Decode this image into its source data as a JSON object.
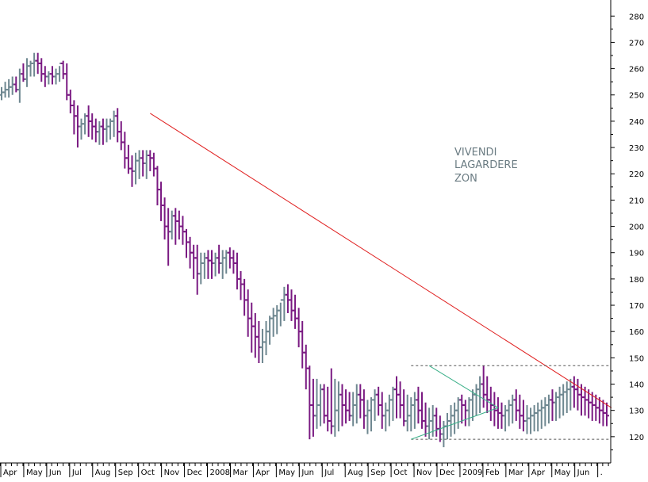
{
  "chart_data": {
    "type": "ohlc",
    "ylim": [
      110,
      284
    ],
    "y_ticks": [
      120,
      130,
      140,
      150,
      160,
      170,
      180,
      190,
      200,
      210,
      220,
      230,
      240,
      250,
      260,
      270,
      280
    ],
    "grid": false,
    "x_ticks": [
      "Apr",
      "May",
      "Jun",
      "Jul",
      "Aug",
      "Sep",
      "Oct",
      "Nov",
      "Dec",
      "2008",
      "Mar",
      "Apr",
      "May",
      "Jun",
      "Jul",
      "Aug",
      "Sep",
      "Oct",
      "Nov",
      "Dec",
      "2009",
      "Feb",
      "Mar",
      "Apr",
      "May",
      "Jun",
      "."
    ],
    "annotation_lines": [
      "VIVENDI",
      "LAGARDERE",
      "ZON"
    ],
    "colors": {
      "up": "#6e8790",
      "down": "#7a1a82",
      "trendline": "#e02020",
      "triangle": "#3bb089",
      "box": "#555555",
      "annotation": "#6a7b82"
    },
    "series": [
      {
        "bar_index": [
          0,
          1,
          2,
          3,
          4,
          5,
          6,
          7,
          8,
          9,
          10,
          11,
          12,
          13,
          14,
          15,
          16,
          17,
          18,
          19,
          20,
          21,
          22,
          23,
          24,
          25,
          26,
          27,
          28,
          29,
          30,
          31,
          32,
          33,
          34,
          35,
          36,
          37,
          38,
          39,
          40,
          41,
          42,
          43,
          44,
          45,
          46,
          47,
          48,
          49,
          50,
          51,
          52,
          53,
          54,
          55,
          56,
          57,
          58,
          59,
          60,
          61,
          62,
          63,
          64,
          65,
          66,
          67,
          68,
          69,
          70,
          71,
          72,
          73,
          74,
          75,
          76,
          77,
          78,
          79,
          80,
          81,
          82,
          83,
          84,
          85,
          86,
          87,
          88,
          89,
          90,
          91,
          92,
          93,
          94,
          95,
          96,
          97,
          98,
          99,
          100,
          101,
          102,
          103,
          104,
          105,
          106,
          107,
          108,
          109,
          110,
          111,
          112,
          113,
          114,
          115,
          116,
          117,
          118,
          119,
          120,
          121,
          122,
          123,
          124,
          125,
          126,
          127,
          128,
          129,
          130,
          131,
          132,
          133,
          134,
          135,
          136,
          137,
          138,
          139,
          140,
          141,
          142,
          143,
          144,
          145,
          146,
          147,
          148,
          149,
          150,
          151,
          152,
          153,
          154,
          155,
          156,
          157,
          158,
          159,
          160,
          161,
          162,
          163,
          164,
          165,
          166,
          167
        ],
        "open": [
          250,
          251,
          252,
          253,
          254,
          252,
          258,
          256,
          261,
          262,
          263,
          262,
          258,
          257,
          258,
          257,
          258,
          262,
          258,
          250,
          246,
          242,
          238,
          239,
          242,
          240,
          238,
          236,
          238,
          237,
          238,
          240,
          242,
          236,
          232,
          226,
          222,
          221,
          225,
          226,
          224,
          227,
          226,
          222,
          214,
          208,
          200,
          198,
          204,
          202,
          200,
          198,
          194,
          190,
          188,
          182,
          186,
          188,
          187,
          186,
          188,
          186,
          188,
          190,
          188,
          186,
          180,
          178,
          172,
          165,
          162,
          158,
          154,
          156,
          160,
          165,
          166,
          168,
          172,
          174,
          172,
          168,
          165,
          160,
          152,
          146,
          132,
          128,
          132,
          138,
          128,
          126,
          124,
          130,
          136,
          132,
          130,
          128,
          132,
          136,
          134,
          128,
          130,
          134,
          136,
          132,
          128,
          130,
          134,
          138,
          136,
          132,
          126,
          128,
          132,
          134,
          130,
          126,
          124,
          126,
          128,
          123,
          121,
          124,
          126,
          128,
          130,
          134,
          132,
          130,
          134,
          136,
          138,
          140,
          136,
          134,
          132,
          130,
          129,
          128,
          130,
          132,
          134,
          130,
          128,
          126,
          127,
          128,
          129,
          130,
          131,
          132,
          134,
          133,
          135,
          136,
          137,
          138,
          139,
          138,
          136,
          135,
          134,
          133,
          132,
          131,
          130,
          129
        ],
        "high": [
          253,
          255,
          256,
          257,
          257,
          260,
          262,
          264,
          263,
          266,
          266,
          264,
          261,
          259,
          261,
          260,
          261,
          263,
          262,
          252,
          248,
          246,
          241,
          243,
          246,
          243,
          241,
          240,
          241,
          241,
          241,
          244,
          245,
          240,
          236,
          231,
          227,
          228,
          229,
          229,
          229,
          229,
          228,
          223,
          217,
          211,
          207,
          206,
          207,
          206,
          204,
          199,
          196,
          193,
          193,
          190,
          190,
          191,
          191,
          190,
          193,
          191,
          191,
          192,
          191,
          190,
          183,
          180,
          176,
          171,
          167,
          164,
          161,
          164,
          166,
          169,
          170,
          171,
          177,
          178,
          176,
          174,
          169,
          164,
          155,
          147,
          142,
          142,
          140,
          140,
          139,
          146,
          142,
          141,
          140,
          138,
          137,
          137,
          140,
          140,
          138,
          134,
          135,
          138,
          139,
          137,
          133,
          136,
          139,
          143,
          141,
          138,
          136,
          135,
          137,
          139,
          137,
          133,
          131,
          132,
          131,
          128,
          126,
          129,
          132,
          133,
          135,
          136,
          134,
          135,
          138,
          140,
          143,
          147,
          143,
          139,
          137,
          135,
          133,
          132,
          134,
          136,
          138,
          136,
          134,
          132,
          131,
          132,
          133,
          134,
          135,
          136,
          138,
          137,
          139,
          140,
          141,
          142,
          143,
          142,
          140,
          139,
          138,
          137,
          136,
          135,
          134,
          133
        ],
        "low": [
          248,
          249,
          249,
          250,
          251,
          247,
          255,
          253,
          257,
          257,
          258,
          255,
          253,
          254,
          254,
          254,
          255,
          256,
          248,
          243,
          235,
          230,
          233,
          235,
          234,
          233,
          232,
          231,
          231,
          232,
          233,
          234,
          232,
          229,
          222,
          220,
          215,
          216,
          218,
          219,
          218,
          221,
          219,
          208,
          202,
          195,
          185,
          195,
          193,
          195,
          193,
          188,
          184,
          180,
          174,
          178,
          180,
          180,
          180,
          181,
          182,
          180,
          182,
          184,
          182,
          176,
          172,
          166,
          158,
          152,
          150,
          148,
          148,
          151,
          155,
          158,
          159,
          162,
          164,
          167,
          164,
          161,
          154,
          146,
          138,
          119,
          120,
          123,
          124,
          125,
          122,
          121,
          120,
          122,
          124,
          125,
          126,
          124,
          125,
          127,
          123,
          121,
          122,
          126,
          128,
          123,
          122,
          124,
          126,
          127,
          127,
          124,
          122,
          122,
          123,
          125,
          123,
          120,
          119,
          120,
          120,
          118,
          116,
          119,
          120,
          121,
          123,
          125,
          124,
          124,
          126,
          128,
          129,
          131,
          129,
          126,
          124,
          123,
          123,
          122,
          124,
          125,
          126,
          123,
          122,
          121,
          121,
          122,
          122,
          123,
          124,
          125,
          126,
          126,
          127,
          128,
          129,
          130,
          131,
          130,
          128,
          128,
          127,
          126,
          126,
          125,
          124,
          124
        ],
        "close": [
          251,
          252,
          253,
          254,
          252,
          258,
          256,
          261,
          262,
          263,
          262,
          258,
          257,
          258,
          257,
          258,
          262,
          258,
          250,
          246,
          242,
          238,
          239,
          242,
          240,
          238,
          236,
          238,
          237,
          238,
          240,
          242,
          236,
          232,
          226,
          222,
          221,
          225,
          226,
          224,
          227,
          226,
          222,
          214,
          208,
          200,
          198,
          204,
          202,
          200,
          198,
          194,
          190,
          188,
          182,
          186,
          188,
          187,
          186,
          188,
          186,
          188,
          190,
          188,
          186,
          180,
          178,
          172,
          165,
          162,
          158,
          154,
          156,
          160,
          165,
          166,
          168,
          172,
          174,
          172,
          168,
          165,
          160,
          152,
          146,
          132,
          128,
          132,
          138,
          128,
          126,
          124,
          130,
          136,
          132,
          130,
          128,
          132,
          136,
          134,
          128,
          130,
          134,
          136,
          132,
          128,
          130,
          134,
          138,
          136,
          132,
          126,
          128,
          132,
          134,
          130,
          126,
          124,
          126,
          128,
          123,
          121,
          124,
          126,
          128,
          130,
          134,
          132,
          130,
          134,
          136,
          138,
          140,
          136,
          134,
          132,
          130,
          129,
          128,
          130,
          132,
          134,
          130,
          128,
          126,
          127,
          128,
          129,
          130,
          131,
          132,
          134,
          133,
          135,
          136,
          137,
          138,
          139,
          138,
          136,
          135,
          134,
          133,
          132,
          131,
          130,
          129,
          128
        ]
      }
    ],
    "trendline": {
      "from": {
        "bar_index": 41,
        "value": 243
      },
      "to": {
        "bar_index": 167,
        "value": 131
      }
    },
    "consolidation_box": {
      "from_bar": 113,
      "to_bar": 162,
      "upper": 147,
      "lower": 119
    },
    "triangle": {
      "apex_bar": 137,
      "apex_value": 131,
      "upper_start": {
        "bar_index": 118,
        "value": 147
      },
      "lower_start": {
        "bar_index": 113,
        "value": 119
      }
    }
  }
}
